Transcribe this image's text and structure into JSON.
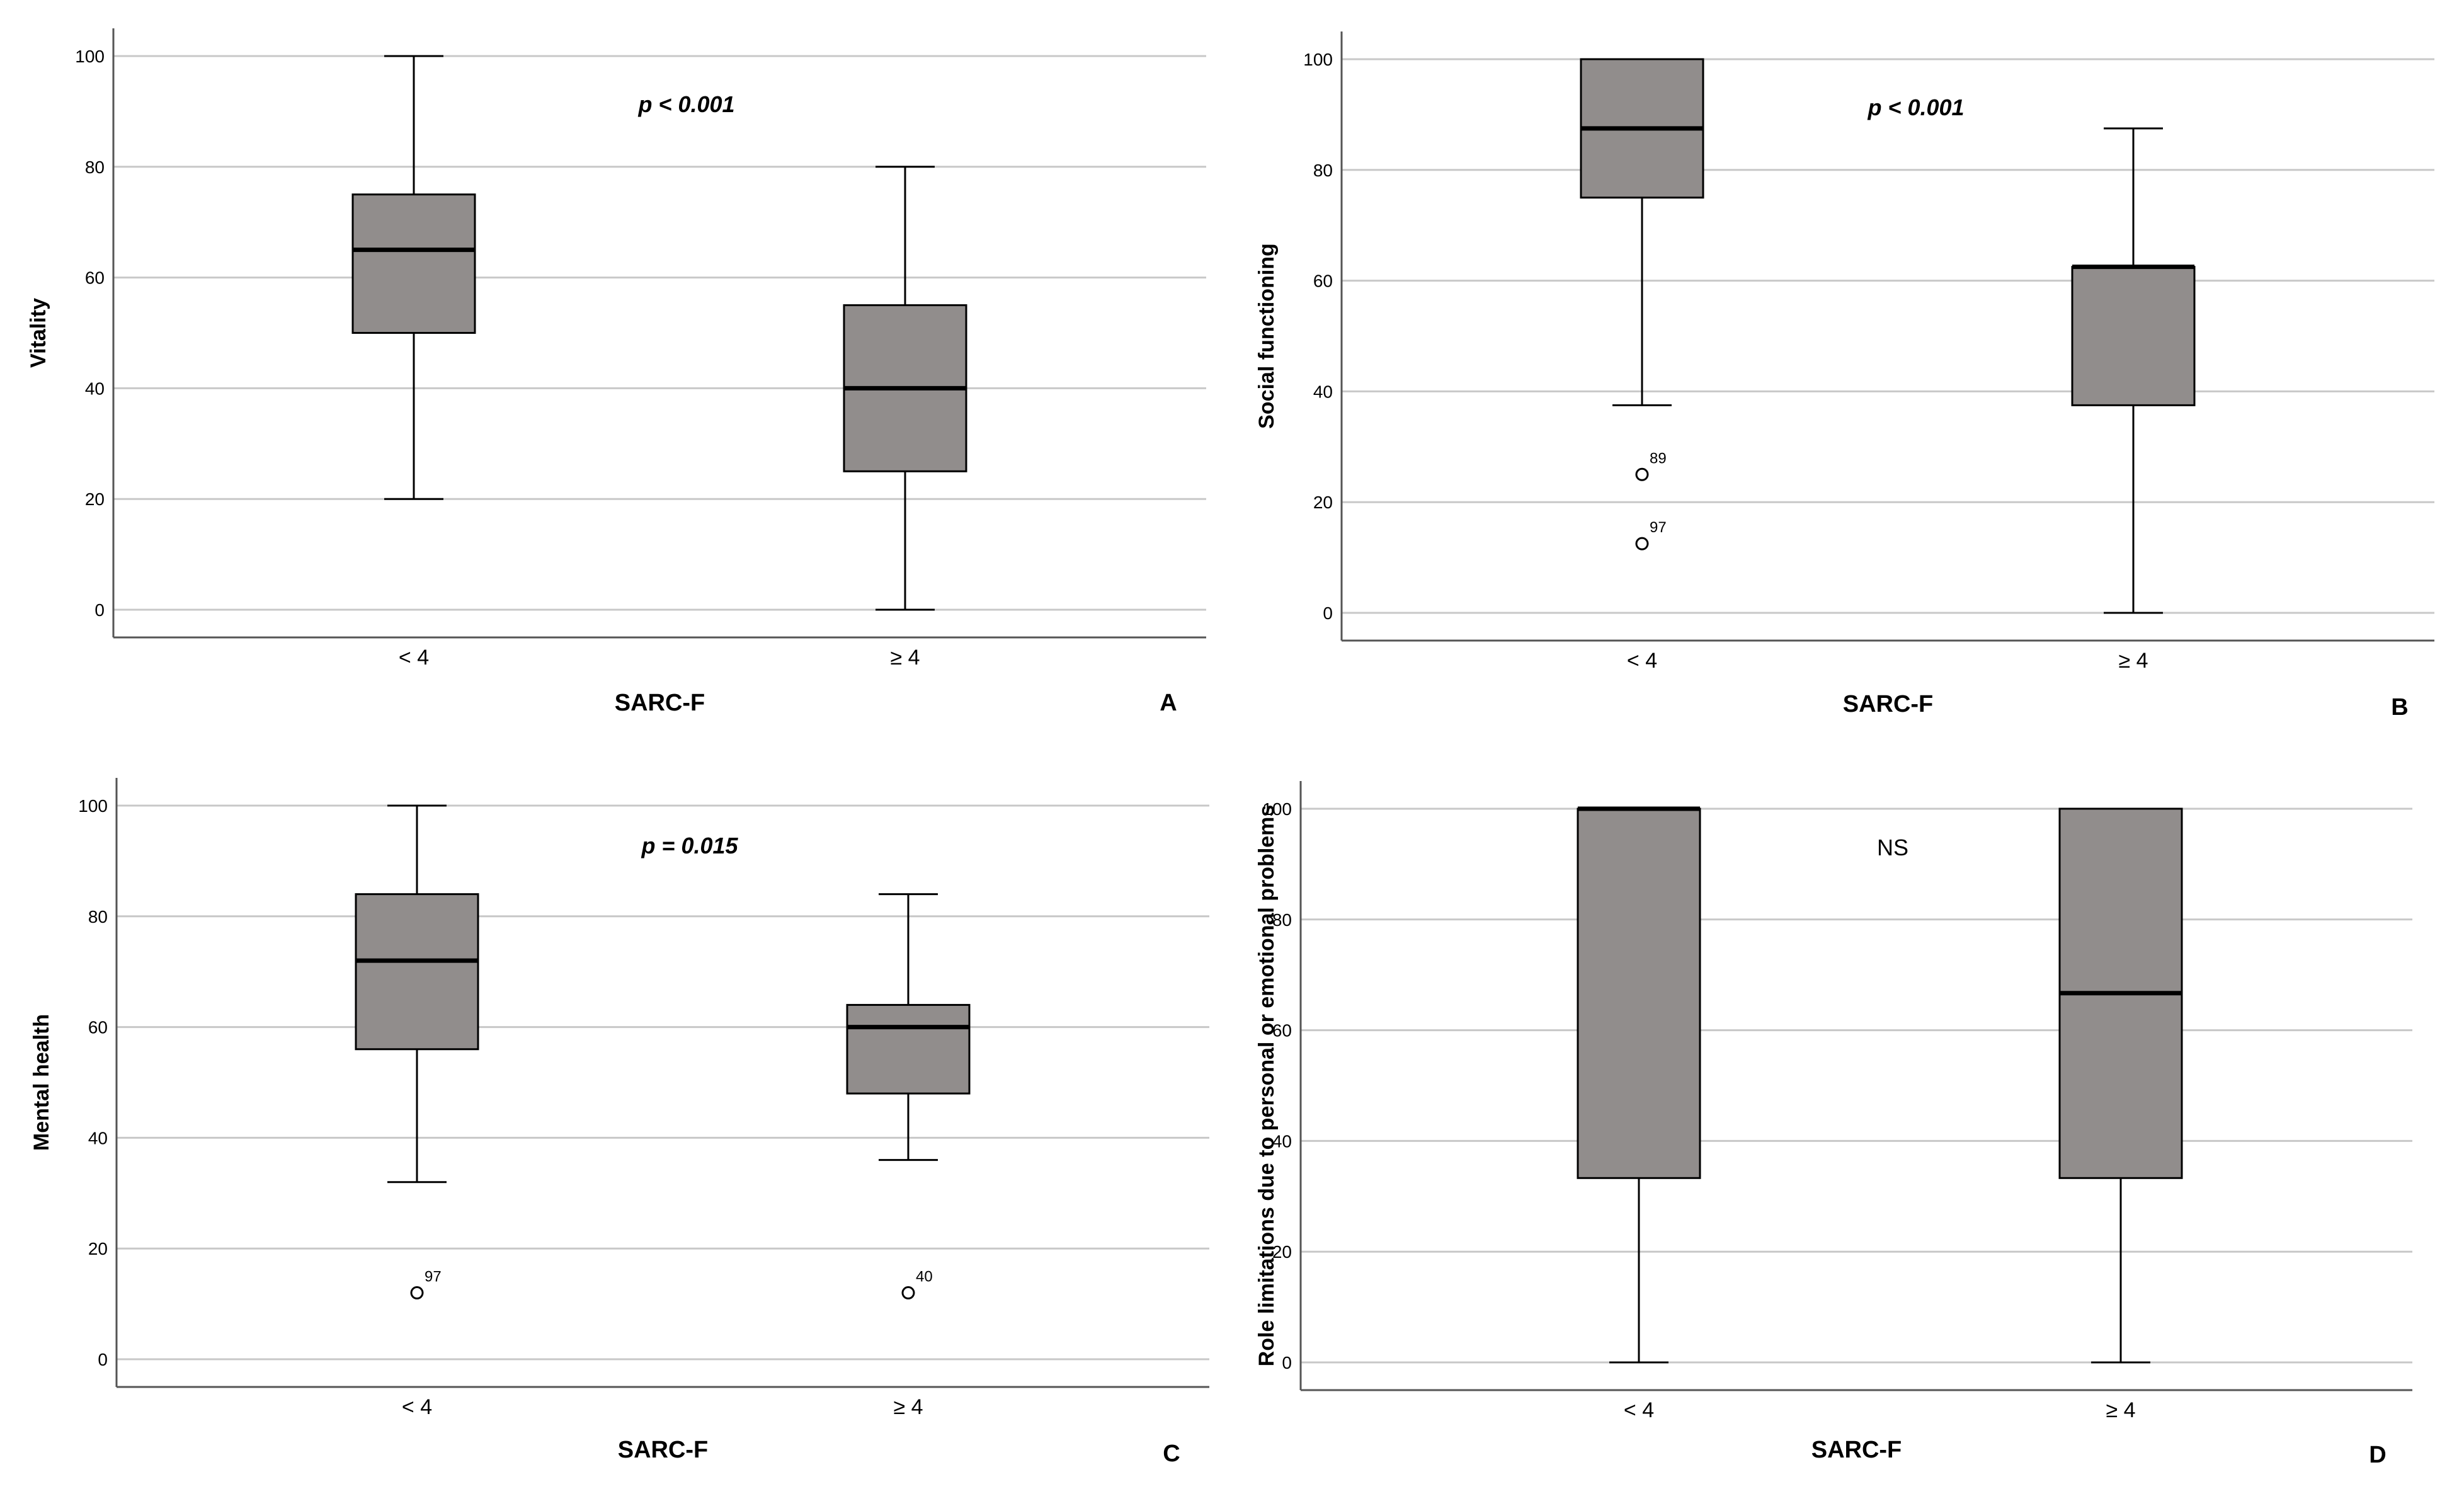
{
  "colors": {
    "box_fill": "#918d8c",
    "grid": "#c8c8c8",
    "axis": "#555555"
  },
  "chart_data": [
    {
      "panel": "A",
      "type": "boxplot",
      "xlabel": "SARC-F",
      "ylabel": "Vitality",
      "ylim": [
        -5,
        105
      ],
      "yticks": [
        0,
        20,
        40,
        60,
        80,
        100
      ],
      "annotation": "p < 0.001",
      "annotation_style": "bold-italic",
      "groups": [
        {
          "label": "< 4",
          "min": 20,
          "q1": 50,
          "median": 65,
          "q3": 75,
          "max": 100,
          "outliers": []
        },
        {
          "label": "≥ 4",
          "min": 0,
          "q1": 25,
          "median": 40,
          "q3": 55,
          "max": 80,
          "outliers": []
        }
      ]
    },
    {
      "panel": "B",
      "type": "boxplot",
      "xlabel": "SARC-F",
      "ylabel": "Social functioning",
      "ylim": [
        -5,
        105
      ],
      "yticks": [
        0,
        20,
        40,
        60,
        80,
        100
      ],
      "annotation": "p < 0.001",
      "annotation_style": "bold-italic",
      "groups": [
        {
          "label": "< 4",
          "min": 37.5,
          "q1": 75,
          "median": 87.5,
          "q3": 100,
          "max": 100,
          "outliers": [
            {
              "value": 25,
              "label": "89"
            },
            {
              "value": 12.5,
              "label": "97"
            }
          ]
        },
        {
          "label": "≥ 4",
          "min": 0,
          "q1": 37.5,
          "median": 62.5,
          "q3": 62.5,
          "max": 87.5,
          "outliers": []
        }
      ]
    },
    {
      "panel": "C",
      "type": "boxplot",
      "xlabel": "SARC-F",
      "ylabel": "Mental health",
      "ylim": [
        -5,
        105
      ],
      "yticks": [
        0,
        20,
        40,
        60,
        80,
        100
      ],
      "annotation": "p = 0.015",
      "annotation_style": "bold-italic",
      "groups": [
        {
          "label": "< 4",
          "min": 32,
          "q1": 56,
          "median": 72,
          "q3": 84,
          "max": 100,
          "outliers": [
            {
              "value": 12,
              "label": "97"
            }
          ]
        },
        {
          "label": "≥ 4",
          "min": 36,
          "q1": 48,
          "median": 60,
          "q3": 64,
          "max": 84,
          "outliers": [
            {
              "value": 12,
              "label": "40"
            }
          ]
        }
      ]
    },
    {
      "panel": "D",
      "type": "boxplot",
      "xlabel": "SARC-F",
      "ylabel": "Role limitations due to personal or emotional problems",
      "ylim": [
        -5,
        105
      ],
      "yticks": [
        0,
        20,
        40,
        60,
        80,
        100
      ],
      "annotation": "NS",
      "annotation_style": "normal",
      "groups": [
        {
          "label": "< 4",
          "min": 0,
          "q1": 33.3,
          "median": 100,
          "q3": 100,
          "max": 100,
          "outliers": []
        },
        {
          "label": "≥ 4",
          "min": 0,
          "q1": 33.3,
          "median": 66.7,
          "q3": 100,
          "max": 100,
          "outliers": []
        }
      ]
    }
  ]
}
